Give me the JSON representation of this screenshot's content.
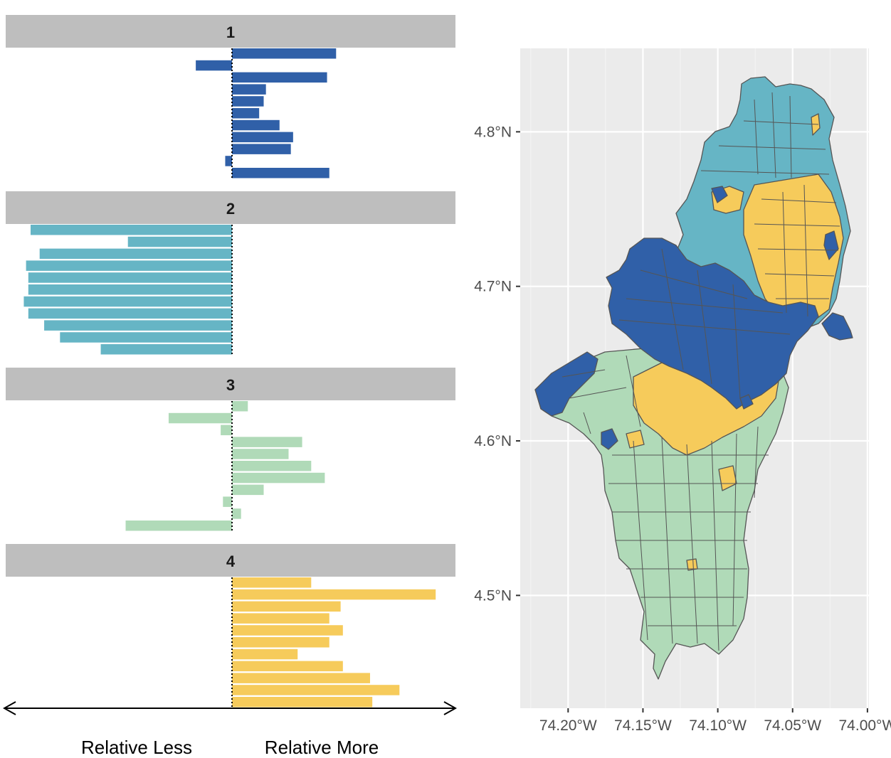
{
  "colors": {
    "panel_1": "#3060a8",
    "panel_2": "#66b5c5",
    "panel_3": "#b0dab8",
    "panel_4": "#f6cb5b",
    "strip": "#bebebe",
    "map_background": "#ebebeb",
    "polygon_border": "#555555"
  },
  "chart_data": [
    {
      "type": "bar",
      "orientation": "horizontal",
      "title": "",
      "xlabel": "",
      "ylabel": "",
      "zero_line": "dotted",
      "bottom_labels": {
        "left": "Relative Less",
        "right": "Relative More"
      },
      "xlim": [
        -1,
        1
      ],
      "panels": [
        {
          "name": "1",
          "color": "#3060a8",
          "values": [
            0.46,
            -0.16,
            0.42,
            0.15,
            0.14,
            0.12,
            0.21,
            0.27,
            0.26,
            -0.03,
            0.43
          ]
        },
        {
          "name": "2",
          "color": "#66b5c5",
          "values": [
            -0.89,
            -0.46,
            -0.85,
            -0.91,
            -0.9,
            -0.9,
            -0.92,
            -0.9,
            -0.83,
            -0.76,
            -0.58
          ]
        },
        {
          "name": "3",
          "color": "#b0dab8",
          "values": [
            0.07,
            -0.28,
            -0.05,
            0.31,
            0.25,
            0.35,
            0.41,
            0.14,
            -0.04,
            0.04,
            -0.47
          ]
        },
        {
          "name": "4",
          "color": "#f6cb5b",
          "values": [
            0.35,
            0.9,
            0.48,
            0.43,
            0.49,
            0.43,
            0.29,
            0.49,
            0.61,
            0.74,
            0.62
          ]
        }
      ]
    },
    {
      "type": "map",
      "title": "",
      "xlabel": "",
      "ylabel": "",
      "grid": true,
      "x_ticks": [
        "74.20°W",
        "74.15°W",
        "74.10°W",
        "74.05°W",
        "74.00°W"
      ],
      "y_ticks": [
        "4.8°N",
        "4.7°N",
        "4.6°N",
        "4.5°N"
      ],
      "xlim": [
        -74.232,
        -73.999
      ],
      "ylim": [
        4.427,
        4.854
      ],
      "regions": [
        {
          "cluster": "2",
          "color": "#66b5c5",
          "area": "north"
        },
        {
          "cluster": "4",
          "color": "#f6cb5b",
          "area": "north-east and central belt"
        },
        {
          "cluster": "1",
          "color": "#3060a8",
          "area": "west and central band"
        },
        {
          "cluster": "3",
          "color": "#b0dab8",
          "area": "south"
        }
      ]
    }
  ]
}
